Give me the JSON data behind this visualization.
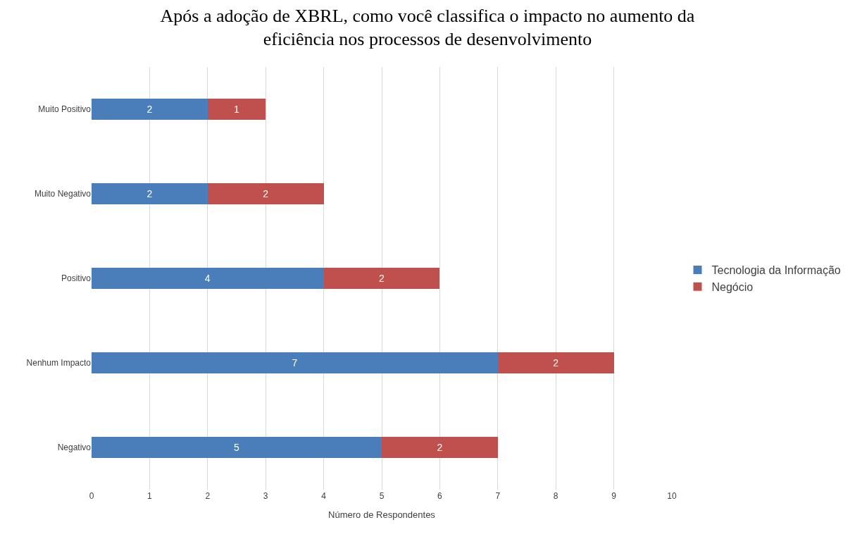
{
  "chart_data": {
    "type": "bar",
    "orientation": "horizontal",
    "stacked": true,
    "title": "Após a adoção de XBRL, como você classifica o impacto no aumento da eficiência nos processos de desenvolvimento",
    "xlabel": "Número de Respondentes",
    "categories": [
      "Muito Positivo",
      "Muito Negativo",
      "Positivo",
      "Nenhum Impacto",
      "Negativo"
    ],
    "series": [
      {
        "name": "Tecnologia da Informação",
        "color": "#4a7ebb",
        "values": [
          2,
          2,
          4,
          7,
          5
        ]
      },
      {
        "name": "Negócio",
        "color": "#c0504d",
        "values": [
          1,
          2,
          2,
          2,
          2
        ]
      }
    ],
    "xlim": [
      0,
      10
    ],
    "xticks": [
      0,
      1,
      2,
      3,
      4,
      5,
      6,
      7,
      8,
      9,
      10
    ],
    "grid": "x",
    "legend": "right",
    "data_labels": true
  }
}
